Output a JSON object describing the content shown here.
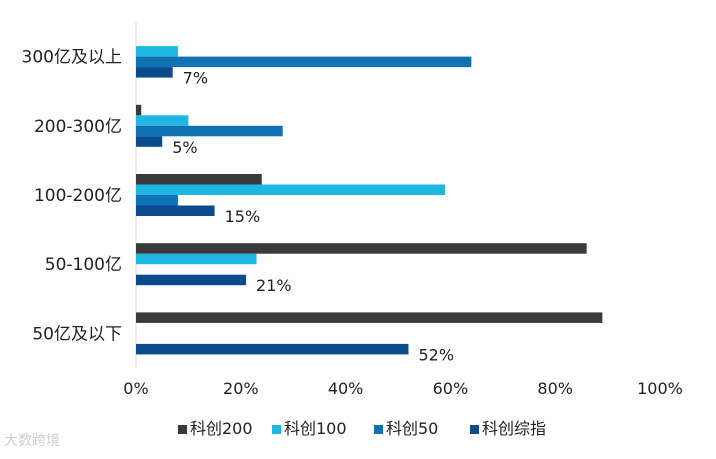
{
  "chart_data": {
    "type": "bar",
    "orientation": "horizontal",
    "categories": [
      "300亿及以上",
      "200-300亿",
      "100-200亿",
      "50-100亿",
      "50亿及以下"
    ],
    "series": [
      {
        "name": "科创200",
        "color": "#3a3a3a",
        "values": [
          0,
          0.01,
          0.24,
          0.86,
          0.89
        ]
      },
      {
        "name": "科创100",
        "color": "#1fb6e2",
        "values": [
          0.08,
          0.1,
          0.59,
          0.23,
          0
        ]
      },
      {
        "name": "科创50",
        "color": "#0e72b5",
        "values": [
          0.64,
          0.28,
          0.08,
          0,
          0
        ]
      },
      {
        "name": "科创综指",
        "color": "#0b4a8c",
        "values": [
          0.07,
          0.05,
          0.15,
          0.21,
          0.52
        ]
      }
    ],
    "data_labels": [
      "7%",
      "5%",
      "15%",
      "21%",
      "52%"
    ],
    "xlim": [
      0,
      1
    ],
    "xticks": [
      "0%",
      "20%",
      "40%",
      "60%",
      "80%",
      "100%"
    ],
    "legend_position": "bottom",
    "grid": false
  },
  "watermark": "大数跨境"
}
